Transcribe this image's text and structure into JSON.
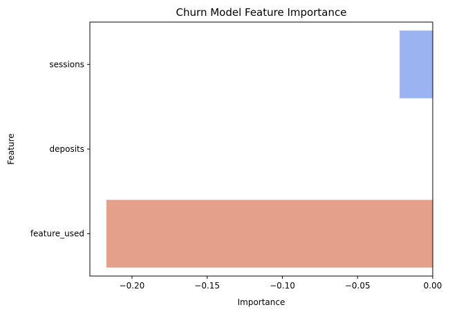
{
  "chart_data": {
    "type": "bar",
    "orientation": "horizontal",
    "title": "Churn Model Feature Importance",
    "xlabel": "Importance",
    "ylabel": "Feature",
    "categories": [
      "sessions",
      "deposits",
      "feature_used"
    ],
    "values": [
      -0.022,
      0.0,
      -0.217
    ],
    "colors": [
      "#9cb3f2",
      "#d3d3d3",
      "#e4a08a"
    ],
    "xlim": [
      -0.228,
      0.0
    ],
    "xticks": [
      -0.2,
      -0.15,
      -0.1,
      -0.05,
      0.0
    ],
    "xtick_labels": [
      "−0.20",
      "−0.15",
      "−0.10",
      "−0.05",
      "0.00"
    ],
    "grid": false,
    "legend": "none"
  }
}
